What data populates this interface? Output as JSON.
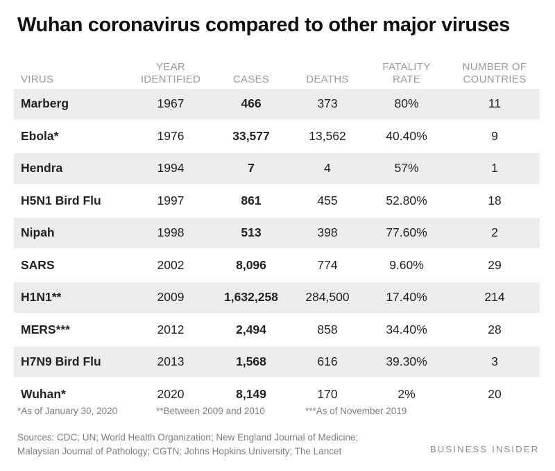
{
  "chart_data": {
    "type": "table",
    "title": "Wuhan coronavirus compared to other major viruses",
    "columns": [
      "VIRUS",
      "YEAR IDENTIFIED",
      "CASES",
      "DEATHS",
      "FATALITY RATE",
      "NUMBER OF COUNTRIES"
    ],
    "header_lines": [
      [
        "VIRUS"
      ],
      [
        "YEAR",
        "IDENTIFIED"
      ],
      [
        "CASES"
      ],
      [
        "DEATHS"
      ],
      [
        "FATALITY",
        "RATE"
      ],
      [
        "NUMBER OF",
        "COUNTRIES"
      ]
    ],
    "rows": [
      [
        "Marberg",
        "1967",
        "466",
        "373",
        "80%",
        "11"
      ],
      [
        "Ebola*",
        "1976",
        "33,577",
        "13,562",
        "40.40%",
        "9"
      ],
      [
        "Hendra",
        "1994",
        "7",
        "4",
        "57%",
        "1"
      ],
      [
        "H5N1 Bird Flu",
        "1997",
        "861",
        "455",
        "52.80%",
        "18"
      ],
      [
        "Nipah",
        "1998",
        "513",
        "398",
        "77.60%",
        "2"
      ],
      [
        "SARS",
        "2002",
        "8,096",
        "774",
        "9.60%",
        "29"
      ],
      [
        "H1N1**",
        "2009",
        "1,632,258",
        "284,500",
        "17.40%",
        "214"
      ],
      [
        "MERS***",
        "2012",
        "2,494",
        "858",
        "34.40%",
        "28"
      ],
      [
        "H7N9 Bird Flu",
        "2013",
        "1,568",
        "616",
        "39.30%",
        "3"
      ],
      [
        "Wuhan*",
        "2020",
        "8,149",
        "170",
        "2%",
        "20"
      ]
    ]
  },
  "footnotes": [
    "*As of January 30, 2020",
    "**Between 2009 and 2010",
    "***As of November 2019"
  ],
  "sources": {
    "line1": "Sources: CDC; UN; World Health Organization; New England Journal of Medicine;",
    "line2": "Malaysian Journal of Pathology; CGTN; Johns Hopkins University; The Lancet"
  },
  "brand": "BUSINESS INSIDER",
  "colors": {
    "row_shade": "#ececec",
    "header_text": "#9a9a9a",
    "footnote_text": "#7d7d7d"
  }
}
